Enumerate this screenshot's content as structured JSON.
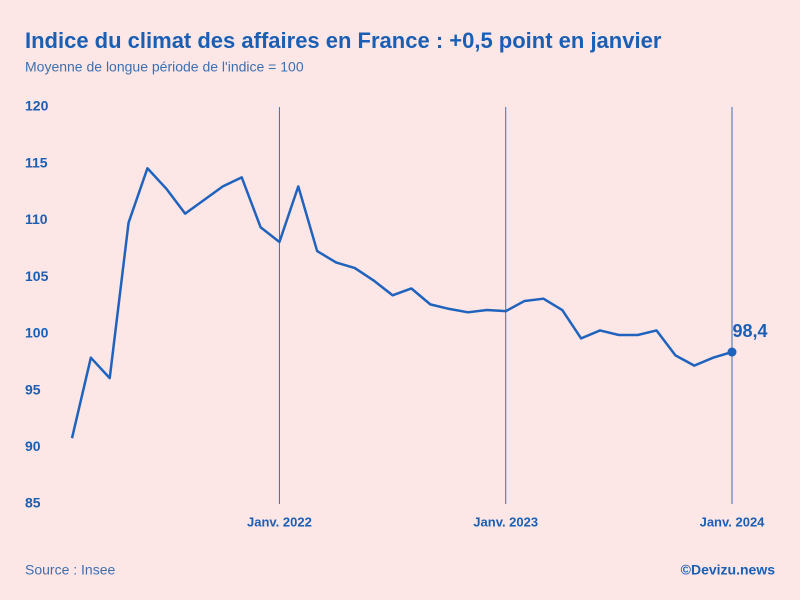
{
  "chart_data": {
    "type": "line",
    "title": "Indice du climat des affaires en France : +0,5 point en janvier",
    "subtitle": "Moyenne de longue période de l'indice = 100",
    "source": "Source : Insee",
    "credit": "©Devizu.news",
    "categories": [
      null,
      null,
      null,
      null,
      null,
      null,
      null,
      null,
      null,
      null,
      null,
      "Janv. 2022",
      null,
      null,
      null,
      null,
      null,
      null,
      null,
      null,
      null,
      null,
      null,
      "Janv. 2023",
      null,
      null,
      null,
      null,
      null,
      null,
      null,
      null,
      null,
      null,
      null,
      "Janv. 2024"
    ],
    "series": [
      {
        "color": "#1f63bd",
        "values": [
          90.8,
          97.9,
          96.1,
          109.8,
          114.6,
          112.8,
          110.6,
          111.8,
          113.0,
          113.8,
          109.4,
          108.1,
          113.0,
          107.3,
          106.3,
          105.8,
          104.7,
          103.4,
          104.0,
          102.6,
          102.2,
          101.9,
          102.1,
          102.0,
          102.9,
          103.1,
          102.1,
          99.6,
          100.3,
          99.9,
          99.9,
          100.3,
          98.1,
          97.2,
          97.9,
          98.4
        ],
        "value_labels": [
          null,
          null,
          null,
          null,
          null,
          null,
          null,
          null,
          null,
          null,
          null,
          null,
          null,
          null,
          null,
          null,
          null,
          null,
          null,
          null,
          null,
          null,
          null,
          null,
          null,
          null,
          null,
          null,
          null,
          null,
          null,
          null,
          null,
          null,
          null,
          "98,4"
        ]
      }
    ],
    "ylim": [
      85,
      120
    ],
    "yticks": [
      85,
      90,
      95,
      100,
      105,
      110,
      115,
      120
    ]
  }
}
